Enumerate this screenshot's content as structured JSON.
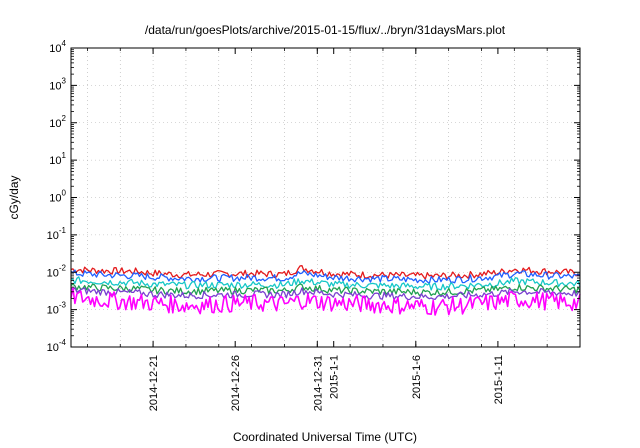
{
  "chart_data": {
    "type": "line",
    "title": "/data/run/goesPlots/archive/2015-01-15/flux/../bryn/31daysMars.plot",
    "xlabel": "Coordinated Universal Time (UTC)",
    "ylabel": "cGy/day",
    "yscale": "log",
    "ylim": [
      0.0001,
      10000
    ],
    "y_ticks": [
      {
        "base": "10",
        "exp": "-4",
        "value": 0.0001
      },
      {
        "base": "10",
        "exp": "-3",
        "value": 0.001
      },
      {
        "base": "10",
        "exp": "-2",
        "value": 0.01
      },
      {
        "base": "10",
        "exp": "-1",
        "value": 0.1
      },
      {
        "base": "10",
        "exp": "0",
        "value": 1
      },
      {
        "base": "10",
        "exp": "1",
        "value": 10
      },
      {
        "base": "10",
        "exp": "2",
        "value": 100
      },
      {
        "base": "10",
        "exp": "3",
        "value": 1000
      },
      {
        "base": "10",
        "exp": "4",
        "value": 10000
      }
    ],
    "xlim": [
      "2014-12-16",
      "2015-01-16"
    ],
    "x_ticks": [
      {
        "label": "2014-12-21",
        "date": "2014-12-21"
      },
      {
        "label": "2014-12-26",
        "date": "2014-12-26"
      },
      {
        "label": "2014-12-31",
        "date": "2014-12-31"
      },
      {
        "label": "2015-1-1",
        "date": "2015-01-01"
      },
      {
        "label": "2015-1-6",
        "date": "2015-01-06"
      },
      {
        "label": "2015-1-11",
        "date": "2015-01-11"
      }
    ],
    "grid": true,
    "series": [
      {
        "color": "#e41a1c",
        "dates": [
          "2014-12-16",
          "2014-12-18",
          "2014-12-20",
          "2014-12-21",
          "2014-12-23",
          "2014-12-25",
          "2014-12-27",
          "2014-12-29",
          "2014-12-30",
          "2015-01-01",
          "2015-01-03",
          "2015-01-05",
          "2015-01-07",
          "2015-01-09",
          "2015-01-11",
          "2015-01-12",
          "2015-01-14",
          "2015-01-16"
        ],
        "values": [
          0.012,
          0.011,
          0.0105,
          0.0095,
          0.0085,
          0.009,
          0.0092,
          0.0088,
          0.013,
          0.0092,
          0.0085,
          0.0082,
          0.0078,
          0.0083,
          0.0098,
          0.012,
          0.0105,
          0.0095
        ]
      },
      {
        "color": "#1f5fff",
        "dates": [
          "2014-12-16",
          "2014-12-18",
          "2014-12-20",
          "2014-12-21",
          "2014-12-23",
          "2014-12-25",
          "2014-12-27",
          "2014-12-29",
          "2014-12-30",
          "2015-01-01",
          "2015-01-03",
          "2015-01-05",
          "2015-01-07",
          "2015-01-09",
          "2015-01-11",
          "2015-01-12",
          "2015-01-14",
          "2015-01-16"
        ],
        "values": [
          0.0095,
          0.0085,
          0.008,
          0.0075,
          0.0068,
          0.007,
          0.0072,
          0.007,
          0.0095,
          0.0072,
          0.0068,
          0.0065,
          0.0062,
          0.0066,
          0.0078,
          0.0092,
          0.0082,
          0.0075
        ]
      },
      {
        "color": "#16c7c7",
        "dates": [
          "2014-12-16",
          "2014-12-18",
          "2014-12-20",
          "2014-12-21",
          "2014-12-23",
          "2014-12-25",
          "2014-12-27",
          "2014-12-29",
          "2014-12-30",
          "2015-01-01",
          "2015-01-03",
          "2015-01-05",
          "2015-01-07",
          "2015-01-09",
          "2015-01-11",
          "2015-01-12",
          "2015-01-14",
          "2015-01-16"
        ],
        "values": [
          0.0062,
          0.0056,
          0.0052,
          0.0048,
          0.0045,
          0.0046,
          0.0047,
          0.0046,
          0.006,
          0.0047,
          0.0045,
          0.0043,
          0.0041,
          0.0044,
          0.005,
          0.0058,
          0.0053,
          0.0049
        ]
      },
      {
        "color": "#20a050",
        "dates": [
          "2014-12-16",
          "2014-12-18",
          "2014-12-20",
          "2014-12-21",
          "2014-12-23",
          "2014-12-25",
          "2014-12-27",
          "2014-12-29",
          "2014-12-30",
          "2015-01-01",
          "2015-01-03",
          "2015-01-05",
          "2015-01-07",
          "2015-01-09",
          "2015-01-11",
          "2015-01-12",
          "2015-01-14",
          "2015-01-16"
        ],
        "values": [
          0.0042,
          0.0038,
          0.0036,
          0.0033,
          0.0031,
          0.0032,
          0.0033,
          0.0032,
          0.0041,
          0.0033,
          0.0031,
          0.003,
          0.0029,
          0.0031,
          0.0035,
          0.004,
          0.0037,
          0.0034
        ]
      },
      {
        "color": "#7a3fd0",
        "dates": [
          "2014-12-16",
          "2014-12-18",
          "2014-12-20",
          "2014-12-21",
          "2014-12-23",
          "2014-12-25",
          "2014-12-27",
          "2014-12-29",
          "2014-12-30",
          "2015-01-01",
          "2015-01-03",
          "2015-01-05",
          "2015-01-07",
          "2015-01-09",
          "2015-01-11",
          "2015-01-12",
          "2015-01-14",
          "2015-01-16"
        ],
        "values": [
          0.0033,
          0.003,
          0.0028,
          0.0026,
          0.0024,
          0.0025,
          0.0026,
          0.0025,
          0.0032,
          0.0026,
          0.0024,
          0.0023,
          0.0022,
          0.0024,
          0.0027,
          0.0031,
          0.0029,
          0.0027
        ]
      },
      {
        "color": "#ff00ff",
        "dates": [
          "2014-12-16",
          "2014-12-18",
          "2014-12-20",
          "2014-12-21",
          "2014-12-23",
          "2014-12-25",
          "2014-12-27",
          "2014-12-29",
          "2014-12-30",
          "2015-01-01",
          "2015-01-03",
          "2015-01-05",
          "2015-01-07",
          "2015-01-09",
          "2015-01-11",
          "2015-01-12",
          "2015-01-14",
          "2015-01-16"
        ],
        "values": [
          0.0022,
          0.0018,
          0.0016,
          0.0015,
          0.0013,
          0.0014,
          0.0015,
          0.0014,
          0.0018,
          0.0015,
          0.0014,
          0.0013,
          0.0012,
          0.0013,
          0.0016,
          0.0019,
          0.0017,
          0.0015
        ]
      }
    ]
  }
}
